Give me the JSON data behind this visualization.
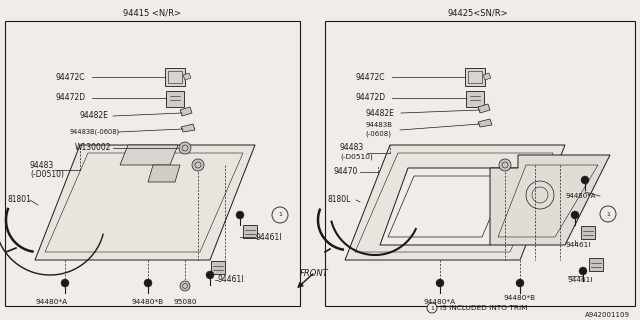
{
  "bg_color": "#f0ede8",
  "line_color": "#1a1a1a",
  "title_left": "94415 <N/R>",
  "title_right": "94425<SN/R>",
  "part_number": "A942001109",
  "footer_note": "①IS INCLUDED INTO TRIM"
}
